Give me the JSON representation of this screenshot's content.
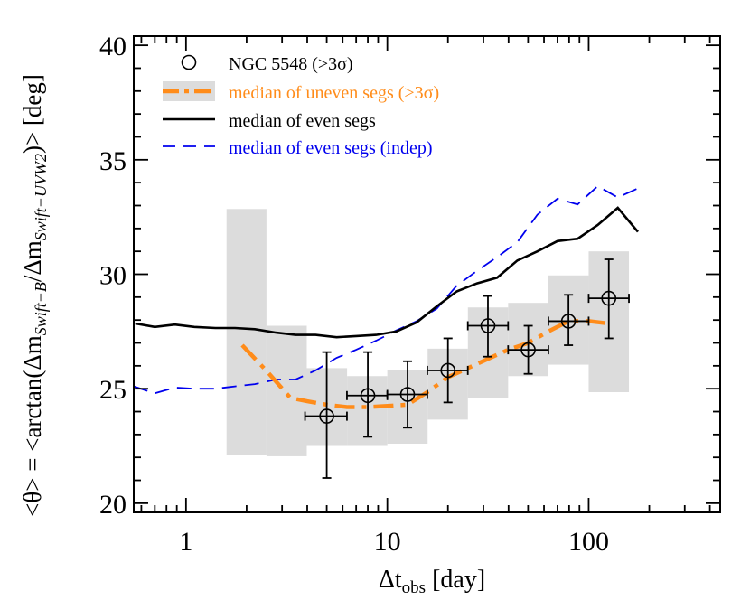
{
  "chart_data": {
    "type": "line",
    "x_scale": "log",
    "xlim": [
      0.55,
      450
    ],
    "ylim": [
      19.6,
      40.4
    ],
    "x_ticks": [
      {
        "value": 1,
        "label": "1"
      },
      {
        "value": 10,
        "label": "10"
      },
      {
        "value": 100,
        "label": "100"
      }
    ],
    "y_ticks": [
      {
        "value": 20,
        "label": "20"
      },
      {
        "value": 25,
        "label": "25"
      },
      {
        "value": 30,
        "label": "30"
      },
      {
        "value": 35,
        "label": "35"
      },
      {
        "value": 40,
        "label": "40"
      }
    ],
    "xlabel": {
      "prefix": "Δt",
      "sub": "obs",
      "suffix": " [day]"
    },
    "ylabel": {
      "part1": "<θ> = <arctan(Δm",
      "sub1": "Swift−B",
      "part2": "/Δm",
      "sub2": "Swift−UVW2",
      "part3": ")> [deg]"
    },
    "legend": {
      "placement": "top-left",
      "entries": [
        {
          "label": "NGC 5548 (>3σ)",
          "color": "#000000",
          "style": "circle"
        },
        {
          "label": "median of uneven segs (>3σ)",
          "color": "#ff8c1a",
          "style": "dashdot-band"
        },
        {
          "label": "median of even segs",
          "color": "#000000",
          "style": "solid"
        },
        {
          "label": "median of even segs (indep)",
          "color": "#0000ee",
          "style": "dashed"
        }
      ]
    },
    "colors": {
      "data": "#000000",
      "uneven": "#ff8c1a",
      "band": "#dcdcdc",
      "even": "#000000",
      "indep": "#0000ee"
    },
    "series": [
      {
        "name": "NGC 5548 (>3σ)",
        "kind": "points",
        "points": [
          {
            "x": 5.0,
            "y": 23.8,
            "xlo": 3.9,
            "xhi": 6.3,
            "ylo": 21.1,
            "yhi": 26.6
          },
          {
            "x": 8.0,
            "y": 24.7,
            "xlo": 6.3,
            "xhi": 10.0,
            "ylo": 22.9,
            "yhi": 26.6
          },
          {
            "x": 12.6,
            "y": 24.75,
            "xlo": 10.0,
            "xhi": 15.8,
            "ylo": 23.3,
            "yhi": 26.2
          },
          {
            "x": 20.0,
            "y": 25.8,
            "xlo": 15.8,
            "xhi": 25.1,
            "ylo": 24.4,
            "yhi": 27.2
          },
          {
            "x": 31.6,
            "y": 27.75,
            "xlo": 25.1,
            "xhi": 39.8,
            "ylo": 26.4,
            "yhi": 29.05
          },
          {
            "x": 50.1,
            "y": 26.7,
            "xlo": 39.8,
            "xhi": 63.1,
            "ylo": 25.65,
            "yhi": 27.75
          },
          {
            "x": 79.4,
            "y": 27.95,
            "xlo": 63.1,
            "xhi": 100.0,
            "ylo": 26.9,
            "yhi": 29.1
          },
          {
            "x": 125.9,
            "y": 28.95,
            "xlo": 100.0,
            "xhi": 158.5,
            "ylo": 27.2,
            "yhi": 30.65
          }
        ]
      },
      {
        "name": "median of uneven segs (>3σ)",
        "kind": "line",
        "points": [
          [
            1.9,
            26.9
          ],
          [
            2.5,
            25.8
          ],
          [
            3.3,
            24.6
          ],
          [
            4.0,
            24.45
          ],
          [
            5.0,
            24.3
          ],
          [
            6.3,
            24.2
          ],
          [
            8.0,
            24.2
          ],
          [
            10.0,
            24.25
          ],
          [
            12.6,
            24.3
          ],
          [
            15.8,
            24.85
          ],
          [
            20.0,
            25.5
          ],
          [
            25.1,
            25.9
          ],
          [
            31.6,
            26.3
          ],
          [
            39.8,
            26.7
          ],
          [
            50.1,
            27.0
          ],
          [
            63.1,
            27.5
          ],
          [
            79.4,
            27.95
          ],
          [
            100.0,
            27.95
          ],
          [
            125.9,
            27.85
          ]
        ]
      },
      {
        "name": "median of uneven segs (>3σ) range",
        "kind": "band",
        "bins": [
          {
            "x0": 1.59,
            "x1": 2.51,
            "ylo": 22.1,
            "yhi": 32.85
          },
          {
            "x0": 2.51,
            "x1": 3.98,
            "ylo": 22.05,
            "yhi": 27.75
          },
          {
            "x0": 3.98,
            "x1": 6.31,
            "ylo": 22.5,
            "yhi": 25.9
          },
          {
            "x0": 6.31,
            "x1": 10.0,
            "ylo": 22.5,
            "yhi": 25.55
          },
          {
            "x0": 10.0,
            "x1": 15.85,
            "ylo": 22.6,
            "yhi": 25.8
          },
          {
            "x0": 15.85,
            "x1": 25.12,
            "ylo": 23.65,
            "yhi": 26.75
          },
          {
            "x0": 25.12,
            "x1": 39.81,
            "ylo": 24.6,
            "yhi": 28.55
          },
          {
            "x0": 39.81,
            "x1": 63.1,
            "ylo": 25.55,
            "yhi": 28.75
          },
          {
            "x0": 63.1,
            "x1": 100.0,
            "ylo": 26.05,
            "yhi": 29.95
          },
          {
            "x0": 100.0,
            "x1": 158.5,
            "ylo": 24.85,
            "yhi": 31.0
          }
        ]
      },
      {
        "name": "median of even segs",
        "kind": "line",
        "points": [
          [
            0.56,
            27.85
          ],
          [
            0.7,
            27.7
          ],
          [
            0.88,
            27.8
          ],
          [
            1.1,
            27.7
          ],
          [
            1.4,
            27.65
          ],
          [
            1.75,
            27.65
          ],
          [
            2.2,
            27.6
          ],
          [
            2.8,
            27.45
          ],
          [
            3.5,
            27.35
          ],
          [
            4.4,
            27.35
          ],
          [
            5.6,
            27.25
          ],
          [
            7.0,
            27.3
          ],
          [
            8.8,
            27.35
          ],
          [
            11.1,
            27.5
          ],
          [
            14.0,
            27.9
          ],
          [
            17.6,
            28.6
          ],
          [
            22.1,
            29.25
          ],
          [
            27.9,
            29.6
          ],
          [
            35.1,
            29.85
          ],
          [
            44.2,
            30.6
          ],
          [
            55.6,
            31.0
          ],
          [
            70.0,
            31.45
          ],
          [
            88.1,
            31.55
          ],
          [
            110.9,
            32.15
          ],
          [
            139.6,
            32.9
          ],
          [
            175.7,
            31.85
          ]
        ]
      },
      {
        "name": "median of even segs (indep)",
        "kind": "line",
        "points": [
          [
            0.55,
            25.1
          ],
          [
            0.7,
            24.8
          ],
          [
            0.88,
            25.05
          ],
          [
            1.1,
            25.0
          ],
          [
            1.4,
            25.0
          ],
          [
            1.75,
            25.1
          ],
          [
            2.2,
            25.2
          ],
          [
            2.8,
            25.4
          ],
          [
            3.5,
            25.4
          ],
          [
            4.4,
            25.8
          ],
          [
            5.6,
            26.35
          ],
          [
            7.0,
            26.7
          ],
          [
            8.8,
            27.1
          ],
          [
            11.1,
            27.55
          ],
          [
            14.0,
            27.95
          ],
          [
            17.6,
            28.5
          ],
          [
            22.1,
            29.5
          ],
          [
            27.9,
            30.15
          ],
          [
            35.1,
            30.75
          ],
          [
            44.2,
            31.4
          ],
          [
            55.6,
            32.6
          ],
          [
            70.0,
            33.3
          ],
          [
            88.1,
            33.05
          ],
          [
            110.9,
            33.85
          ],
          [
            139.6,
            33.35
          ],
          [
            175.7,
            33.75
          ]
        ]
      }
    ]
  }
}
